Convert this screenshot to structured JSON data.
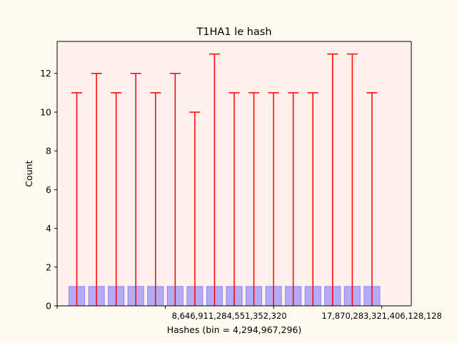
{
  "chart_data": {
    "type": "bar",
    "title": "T1HA1 le hash",
    "xlabel": "Hashes (bin = 4,294,967,296)",
    "ylabel": "Count",
    "ylim": [
      0,
      13.65
    ],
    "xlim": [
      -1,
      17
    ],
    "yticks": [
      0,
      2,
      4,
      6,
      8,
      10,
      12
    ],
    "xticks": [
      {
        "pos": -1,
        "label": ""
      },
      {
        "pos": 4.5,
        "label": ""
      },
      {
        "pos": 10,
        "label": ""
      },
      {
        "pos": 15.5,
        "label": ""
      }
    ],
    "xtick_labels": [
      {
        "pos": 7.75,
        "label": "8,646,911,284,551,352,320"
      },
      {
        "pos": 15.5,
        "label": "17,870,283,321,406,128,128"
      }
    ],
    "bar_values": [
      1,
      1,
      1,
      1,
      1,
      1,
      1,
      1,
      1,
      1,
      1,
      1,
      1,
      1,
      1,
      1
    ],
    "error_upper": [
      11,
      12,
      11,
      12,
      11,
      12,
      10,
      13,
      11,
      11,
      11,
      11,
      11,
      13,
      13,
      11
    ],
    "grid": false,
    "colors": {
      "figure_bg": "#fef9ee",
      "axes_bg": "#fef0ea",
      "bar_fill": "#b3abf5",
      "bar_edge": "#8f86ee",
      "error": "#ff0000"
    }
  }
}
